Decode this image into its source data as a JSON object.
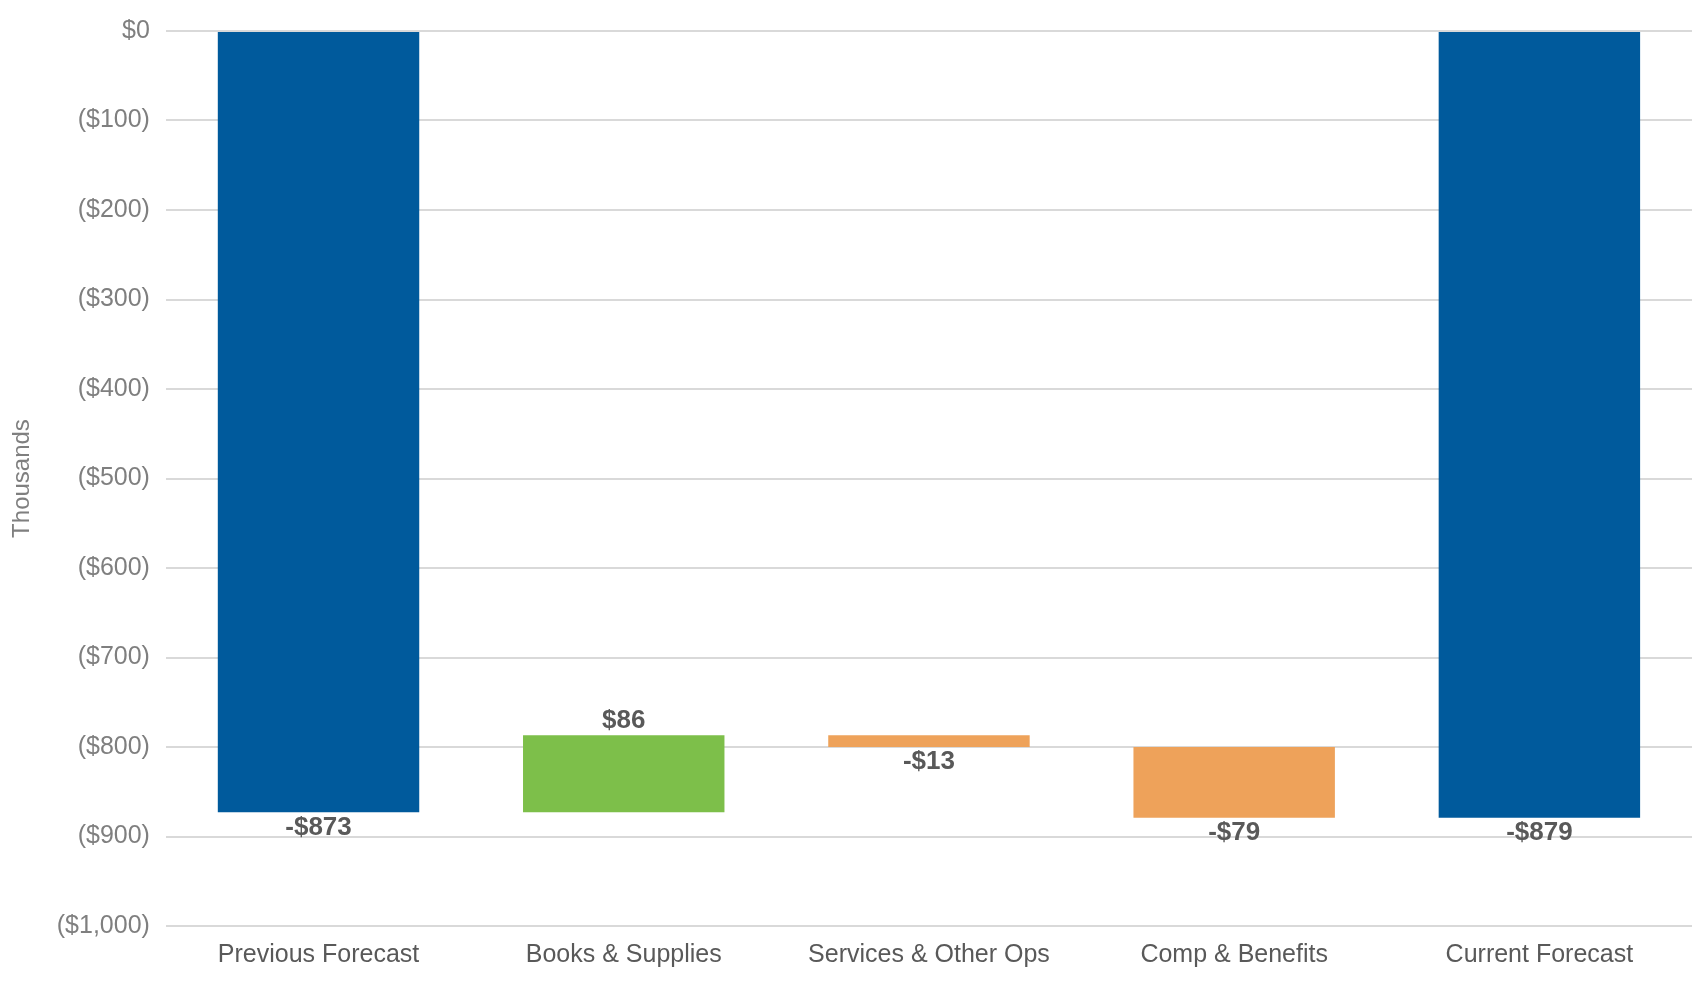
{
  "chart_data": {
    "type": "bar",
    "ylabel": "Thousands",
    "categories": [
      "Previous Forecast",
      "Books & Supplies",
      "Services & Other Ops",
      "Comp & Benefits",
      "Current Forecast"
    ],
    "values": [
      -873,
      86,
      -13,
      -79,
      -879
    ],
    "base": [
      0,
      -873,
      -787,
      -800,
      0
    ],
    "colors": [
      "#005a9c",
      "#7dbf4a",
      "#eea25a",
      "#eea25a",
      "#005a9c"
    ],
    "value_labels": [
      "-$873",
      "$86",
      "-$13",
      "-$79",
      "-$879"
    ],
    "ylim": [
      -1000,
      0
    ],
    "yticks": [
      {
        "value": 0,
        "label": "$0"
      },
      {
        "value": -100,
        "label": "($100)"
      },
      {
        "value": -200,
        "label": "($200)"
      },
      {
        "value": -300,
        "label": "($300)"
      },
      {
        "value": -400,
        "label": "($400)"
      },
      {
        "value": -500,
        "label": "($500)"
      },
      {
        "value": -600,
        "label": "($600)"
      },
      {
        "value": -700,
        "label": "($700)"
      },
      {
        "value": -800,
        "label": "($800)"
      },
      {
        "value": -900,
        "label": "($900)"
      },
      {
        "value": -1000,
        "label": "($1,000)"
      }
    ],
    "grid": "y",
    "legend": false
  }
}
